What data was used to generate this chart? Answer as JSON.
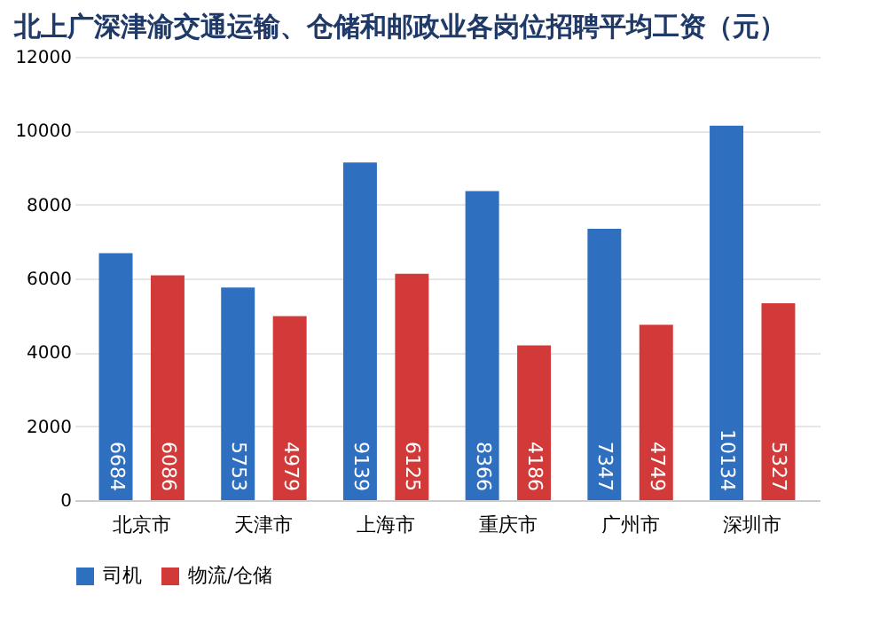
{
  "chart_data": {
    "type": "bar",
    "title": "北上广深津渝交通运输、仓储和邮政业各岗位招聘平均工资（元）",
    "categories": [
      "北京市",
      "天津市",
      "上海市",
      "重庆市",
      "广州市",
      "深圳市"
    ],
    "series": [
      {
        "name": "司机",
        "color": "#2f6fbf",
        "values": [
          6684,
          5753,
          9139,
          8366,
          7347,
          10134
        ]
      },
      {
        "name": "物流/仓储",
        "color": "#d23a3a",
        "values": [
          6086,
          4979,
          6125,
          4186,
          4749,
          5327
        ]
      }
    ],
    "ylim": [
      0,
      12000
    ],
    "yticks": [
      0,
      2000,
      4000,
      6000,
      8000,
      10000,
      12000
    ],
    "grid": "y",
    "legend": "bottom",
    "data_labels": true
  }
}
